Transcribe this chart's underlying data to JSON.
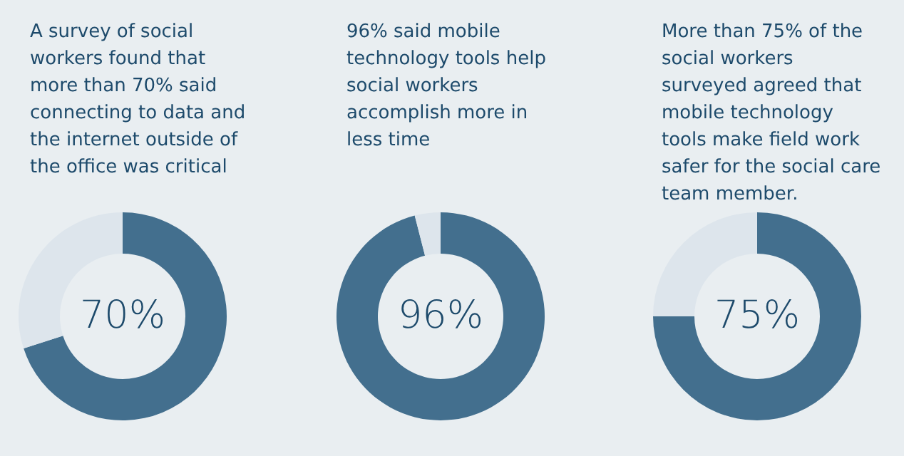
{
  "chart_data": [
    {
      "type": "donut",
      "title": "A survey of social\nworkers found that\nmore than 70% said\nconnecting to data and\nthe internet outside of\nthe office was critical",
      "categories": [
        null,
        null
      ],
      "values": [
        70,
        30
      ],
      "colors": [
        "#436f8e",
        "#dde5ec"
      ],
      "value_labels": [
        "70%",
        null
      ]
    },
    {
      "type": "donut",
      "title": "96% said mobile\ntechnology tools help\nsocial workers\naccomplish more in\nless time",
      "categories": [
        null,
        null
      ],
      "values": [
        96,
        4
      ],
      "colors": [
        "#436f8e",
        "#dde5ec"
      ],
      "value_labels": [
        "96%",
        null
      ]
    },
    {
      "type": "donut",
      "title": "More than 75% of the\nsocial workers\nsurveyed agreed that\nmobile technology\ntools make field work\nsafer for the social care\nteam member.",
      "categories": [
        null,
        null
      ],
      "values": [
        75,
        25
      ],
      "colors": [
        "#436f8e",
        "#dde5ec"
      ],
      "value_labels": [
        "75%",
        null
      ]
    }
  ]
}
